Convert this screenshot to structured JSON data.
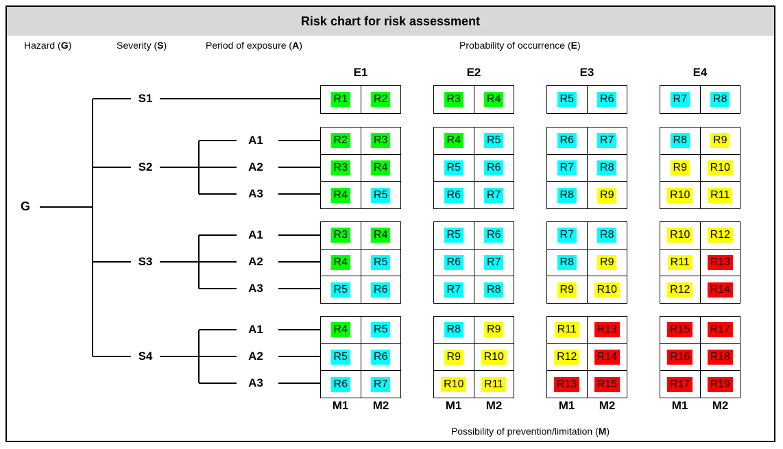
{
  "title": "Risk chart for risk assessment",
  "headers": {
    "hazard": {
      "pre": "Hazard (",
      "bold": "G",
      "post": ")"
    },
    "severity": {
      "pre": "Severity (",
      "bold": "S",
      "post": ")"
    },
    "exposure": {
      "pre": "Period of exposure (",
      "bold": "A",
      "post": ")"
    },
    "probability": {
      "pre": "Probability of occurrence (",
      "bold": "E",
      "post": ")"
    }
  },
  "footer": {
    "pre": "Possibility of prevention/limitation (",
    "bold": "M",
    "post": ")"
  },
  "root_label": "G",
  "e_columns": [
    "E1",
    "E2",
    "E3",
    "E4"
  ],
  "m_labels": [
    "M1",
    "M2"
  ],
  "colors": {
    "green": "#00ff00",
    "cyan": "#00ffff",
    "yellow": "#ffff00",
    "red": "#ff0000",
    "titlebar": "#d8d8d8"
  },
  "groups": [
    {
      "severity": "S1",
      "rows": [
        {
          "label": null,
          "cells": [
            [
              [
                "R1",
                "green"
              ],
              [
                "R2",
                "green"
              ]
            ],
            [
              [
                "R3",
                "green"
              ],
              [
                "R4",
                "green"
              ]
            ],
            [
              [
                "R5",
                "cyan"
              ],
              [
                "R6",
                "cyan"
              ]
            ],
            [
              [
                "R7",
                "cyan"
              ],
              [
                "R8",
                "cyan"
              ]
            ]
          ]
        }
      ]
    },
    {
      "severity": "S2",
      "rows": [
        {
          "label": "A1",
          "cells": [
            [
              [
                "R2",
                "green"
              ],
              [
                "R3",
                "green"
              ]
            ],
            [
              [
                "R4",
                "green"
              ],
              [
                "R5",
                "cyan"
              ]
            ],
            [
              [
                "R6",
                "cyan"
              ],
              [
                "R7",
                "cyan"
              ]
            ],
            [
              [
                "R8",
                "cyan"
              ],
              [
                "R9",
                "yellow"
              ]
            ]
          ]
        },
        {
          "label": "A2",
          "cells": [
            [
              [
                "R3",
                "green"
              ],
              [
                "R4",
                "green"
              ]
            ],
            [
              [
                "R5",
                "cyan"
              ],
              [
                "R6",
                "cyan"
              ]
            ],
            [
              [
                "R7",
                "cyan"
              ],
              [
                "R8",
                "cyan"
              ]
            ],
            [
              [
                "R9",
                "yellow"
              ],
              [
                "R10",
                "yellow"
              ]
            ]
          ]
        },
        {
          "label": "A3",
          "cells": [
            [
              [
                "R4",
                "green"
              ],
              [
                "R5",
                "cyan"
              ]
            ],
            [
              [
                "R6",
                "cyan"
              ],
              [
                "R7",
                "cyan"
              ]
            ],
            [
              [
                "R8",
                "cyan"
              ],
              [
                "R9",
                "yellow"
              ]
            ],
            [
              [
                "R10",
                "yellow"
              ],
              [
                "R11",
                "yellow"
              ]
            ]
          ]
        }
      ]
    },
    {
      "severity": "S3",
      "rows": [
        {
          "label": "A1",
          "cells": [
            [
              [
                "R3",
                "green"
              ],
              [
                "R4",
                "green"
              ]
            ],
            [
              [
                "R5",
                "cyan"
              ],
              [
                "R6",
                "cyan"
              ]
            ],
            [
              [
                "R7",
                "cyan"
              ],
              [
                "R8",
                "cyan"
              ]
            ],
            [
              [
                "R10",
                "yellow"
              ],
              [
                "R12",
                "yellow"
              ]
            ]
          ]
        },
        {
          "label": "A2",
          "cells": [
            [
              [
                "R4",
                "green"
              ],
              [
                "R5",
                "cyan"
              ]
            ],
            [
              [
                "R6",
                "cyan"
              ],
              [
                "R7",
                "cyan"
              ]
            ],
            [
              [
                "R8",
                "cyan"
              ],
              [
                "R9",
                "yellow"
              ]
            ],
            [
              [
                "R11",
                "yellow"
              ],
              [
                "R13",
                "red"
              ]
            ]
          ]
        },
        {
          "label": "A3",
          "cells": [
            [
              [
                "R5",
                "cyan"
              ],
              [
                "R6",
                "cyan"
              ]
            ],
            [
              [
                "R7",
                "cyan"
              ],
              [
                "R8",
                "cyan"
              ]
            ],
            [
              [
                "R9",
                "yellow"
              ],
              [
                "R10",
                "yellow"
              ]
            ],
            [
              [
                "R12",
                "yellow"
              ],
              [
                "R14",
                "red"
              ]
            ]
          ]
        }
      ]
    },
    {
      "severity": "S4",
      "rows": [
        {
          "label": "A1",
          "cells": [
            [
              [
                "R4",
                "green"
              ],
              [
                "R5",
                "cyan"
              ]
            ],
            [
              [
                "R8",
                "cyan"
              ],
              [
                "R9",
                "yellow"
              ]
            ],
            [
              [
                "R11",
                "yellow"
              ],
              [
                "R13",
                "red"
              ]
            ],
            [
              [
                "R15",
                "red"
              ],
              [
                "R17",
                "red"
              ]
            ]
          ]
        },
        {
          "label": "A2",
          "cells": [
            [
              [
                "R5",
                "cyan"
              ],
              [
                "R6",
                "cyan"
              ]
            ],
            [
              [
                "R9",
                "yellow"
              ],
              [
                "R10",
                "yellow"
              ]
            ],
            [
              [
                "R12",
                "yellow"
              ],
              [
                "R14",
                "red"
              ]
            ],
            [
              [
                "R16",
                "red"
              ],
              [
                "R18",
                "red"
              ]
            ]
          ]
        },
        {
          "label": "A3",
          "cells": [
            [
              [
                "R6",
                "cyan"
              ],
              [
                "R7",
                "cyan"
              ]
            ],
            [
              [
                "R10",
                "yellow"
              ],
              [
                "R11",
                "yellow"
              ]
            ],
            [
              [
                "R13",
                "red"
              ],
              [
                "R15",
                "red"
              ]
            ],
            [
              [
                "R17",
                "red"
              ],
              [
                "R19",
                "red"
              ]
            ]
          ]
        }
      ]
    }
  ]
}
